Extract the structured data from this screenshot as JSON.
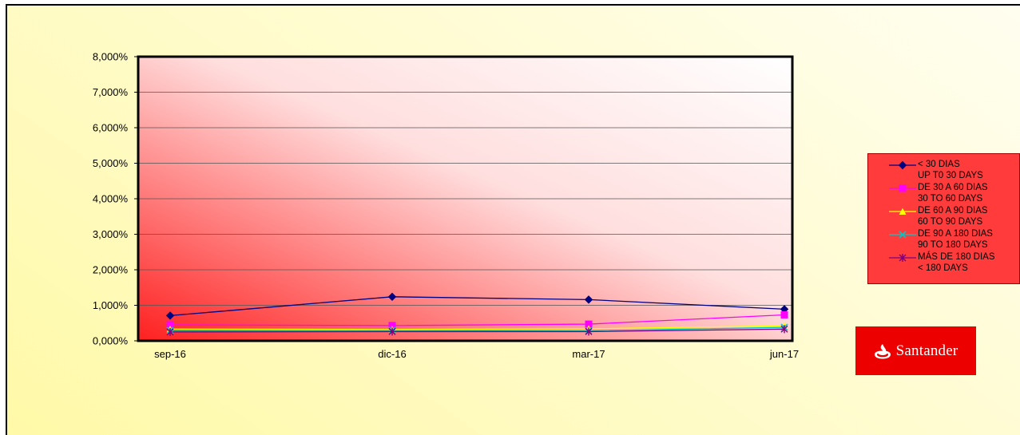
{
  "chart_data": {
    "type": "line",
    "categories": [
      "sep-16",
      "dic-16",
      "mar-17",
      "jun-17"
    ],
    "y_ticks": [
      "0,000%",
      "1,000%",
      "2,000%",
      "3,000%",
      "4,000%",
      "5,000%",
      "6,000%",
      "7,000%",
      "8,000%"
    ],
    "ylim": [
      0,
      8
    ],
    "grid": true,
    "legend_position": "right",
    "series": [
      {
        "name": "<  30 DIAS",
        "name_en": "UP T0 30 DAYS",
        "color": "#000080",
        "marker": "diamond",
        "values": [
          0.71,
          1.24,
          1.16,
          0.89
        ]
      },
      {
        "name": "DE 30 A 60 DIAS",
        "name_en": "30 TO 60 DAYS",
        "color": "#ff00ff",
        "marker": "square",
        "values": [
          0.45,
          0.43,
          0.47,
          0.73
        ]
      },
      {
        "name": "DE 60 A 90 DIAS",
        "name_en": "60 TO 90 DAYS",
        "color": "#ffff00",
        "marker": "triangle",
        "values": [
          0.33,
          0.32,
          0.34,
          0.42
        ]
      },
      {
        "name": "DE 90 A 180 DIAS",
        "name_en": "90  TO 180 DAYS",
        "color": "#00c8c8",
        "marker": "x",
        "values": [
          0.29,
          0.29,
          0.28,
          0.38
        ]
      },
      {
        "name": "MÁS DE 180 DIAS",
        "name_en": "< 180 DAYS",
        "color": "#800080",
        "marker": "star",
        "values": [
          0.25,
          0.26,
          0.26,
          0.33
        ]
      }
    ]
  },
  "logo": {
    "text": "Santander"
  }
}
